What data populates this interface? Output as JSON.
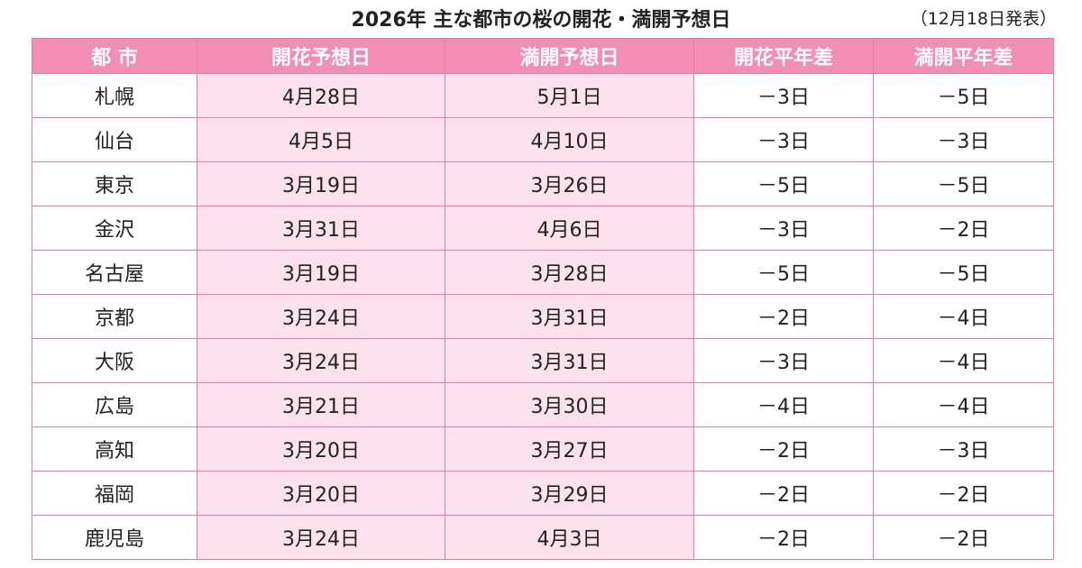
{
  "title": "2026年 主な都市の桜の開花・満開予想日",
  "note": "（12月18日発表）",
  "colors": {
    "header_bg": "#f28db3",
    "date_cell_bg": "#fde1ec",
    "border": "#e87aa3"
  },
  "chart_data": {
    "type": "table",
    "columns": [
      "都 市",
      "開花予想日",
      "満開予想日",
      "開花平年差",
      "満開平年差"
    ],
    "rows": [
      [
        "札幌",
        "4月28日",
        "5月1日",
        "－3日",
        "－5日"
      ],
      [
        "仙台",
        "4月5日",
        "4月10日",
        "－3日",
        "－3日"
      ],
      [
        "東京",
        "3月19日",
        "3月26日",
        "－5日",
        "－5日"
      ],
      [
        "金沢",
        "3月31日",
        "4月6日",
        "－3日",
        "－2日"
      ],
      [
        "名古屋",
        "3月19日",
        "3月28日",
        "－5日",
        "－5日"
      ],
      [
        "京都",
        "3月24日",
        "3月31日",
        "－2日",
        "－4日"
      ],
      [
        "大阪",
        "3月24日",
        "3月31日",
        "－3日",
        "－4日"
      ],
      [
        "広島",
        "3月21日",
        "3月30日",
        "－4日",
        "－4日"
      ],
      [
        "高知",
        "3月20日",
        "3月27日",
        "－2日",
        "－3日"
      ],
      [
        "福岡",
        "3月20日",
        "3月29日",
        "－2日",
        "－2日"
      ],
      [
        "鹿児島",
        "3月24日",
        "4月3日",
        "－2日",
        "－2日"
      ]
    ]
  }
}
